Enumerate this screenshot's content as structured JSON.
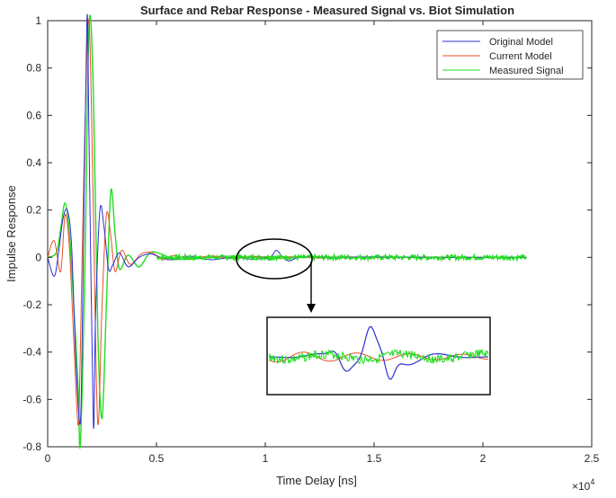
{
  "chart_data": {
    "type": "line",
    "title": "Surface and Rebar Response - Measured Signal vs. Biot Simulation",
    "xlabel": "Time Delay [ns]",
    "ylabel": "Impulse Response",
    "x_exponent_label": "×10",
    "x_exponent_power": "4",
    "xlim": [
      0,
      25000
    ],
    "ylim": [
      -0.8,
      1
    ],
    "x_ticks": [
      0,
      5000,
      10000,
      15000,
      20000,
      25000
    ],
    "x_tick_labels": [
      "0",
      "0.5",
      "1",
      "1.5",
      "2",
      "2.5"
    ],
    "y_ticks": [
      -0.8,
      -0.6,
      -0.4,
      -0.2,
      0,
      0.2,
      0.4,
      0.6,
      0.8,
      1
    ],
    "y_tick_labels": [
      "-0.8",
      "-0.6",
      "-0.4",
      "-0.2",
      "0",
      "0.2",
      "0.4",
      "0.6",
      "0.8",
      "1"
    ],
    "grid": false,
    "legend_position": "top-right",
    "series": [
      {
        "name": "Original Model",
        "color": "#2f2fd6",
        "x": [
          0,
          300,
          500,
          700,
          900,
          1100,
          1300,
          1500,
          1600,
          1800,
          1900,
          2100,
          2200,
          2400,
          2600,
          2800,
          3000,
          3300,
          3700,
          4200,
          4700,
          5200,
          5700,
          6500,
          7500,
          8500,
          9500,
          10000,
          10200,
          10500,
          10800,
          11100,
          11500,
          12000,
          13000,
          15000,
          18000,
          22000
        ],
        "y": [
          0,
          -0.08,
          0.02,
          0.16,
          0.2,
          0.05,
          -0.45,
          -0.7,
          -0.25,
          1.0,
          0.5,
          -0.7,
          -0.25,
          0.2,
          0.12,
          -0.05,
          -0.03,
          0.02,
          -0.04,
          0.0,
          0.015,
          0.0,
          -0.01,
          0.005,
          -0.01,
          0.0,
          -0.008,
          0.0,
          -0.01,
          0.03,
          0.0,
          -0.015,
          0.0,
          0.003,
          0.0,
          0.002,
          0.0,
          0.0
        ]
      },
      {
        "name": "Current Model",
        "color": "#e8502a",
        "x": [
          0,
          300,
          600,
          800,
          1000,
          1200,
          1400,
          1500,
          1700,
          1900,
          2100,
          2300,
          2500,
          2700,
          2900,
          3100,
          3400,
          3800,
          4300,
          4800,
          5300,
          5800,
          6500,
          7500,
          8500,
          9500,
          10500,
          11500,
          12500,
          13500,
          15000,
          18000,
          22000
        ],
        "y": [
          0,
          0.07,
          -0.06,
          0.18,
          0.04,
          -0.35,
          -0.71,
          -0.4,
          0.5,
          1.0,
          0.2,
          -0.7,
          -0.2,
          0.18,
          0.09,
          -0.06,
          0.03,
          -0.03,
          0.015,
          0.02,
          -0.01,
          0.008,
          -0.006,
          0.006,
          -0.005,
          0.004,
          -0.004,
          0.003,
          -0.003,
          0.002,
          0.001,
          0.0,
          0.0
        ]
      },
      {
        "name": "Measured Signal",
        "color": "#22dd22",
        "x": [
          0,
          400,
          600,
          800,
          1000,
          1200,
          1400,
          1500,
          1700,
          1900,
          2100,
          2300,
          2500,
          2700,
          2900,
          3100,
          3300,
          3700,
          4200,
          4700,
          5200,
          5700,
          6500,
          7500,
          8500,
          9500,
          10500,
          11500,
          12500,
          13500,
          15000,
          18000,
          22000
        ],
        "y": [
          0,
          0.02,
          0.12,
          0.23,
          0.1,
          -0.2,
          -0.55,
          -0.79,
          -0.1,
          0.98,
          0.7,
          -0.3,
          -0.68,
          -0.2,
          0.28,
          0.1,
          -0.05,
          0.01,
          -0.04,
          0.02,
          0.015,
          -0.005,
          -0.008,
          0.0,
          0.005,
          0.0,
          0.004,
          0.0,
          0.002,
          0.0,
          0.0,
          0.0,
          0.0
        ]
      }
    ]
  }
}
